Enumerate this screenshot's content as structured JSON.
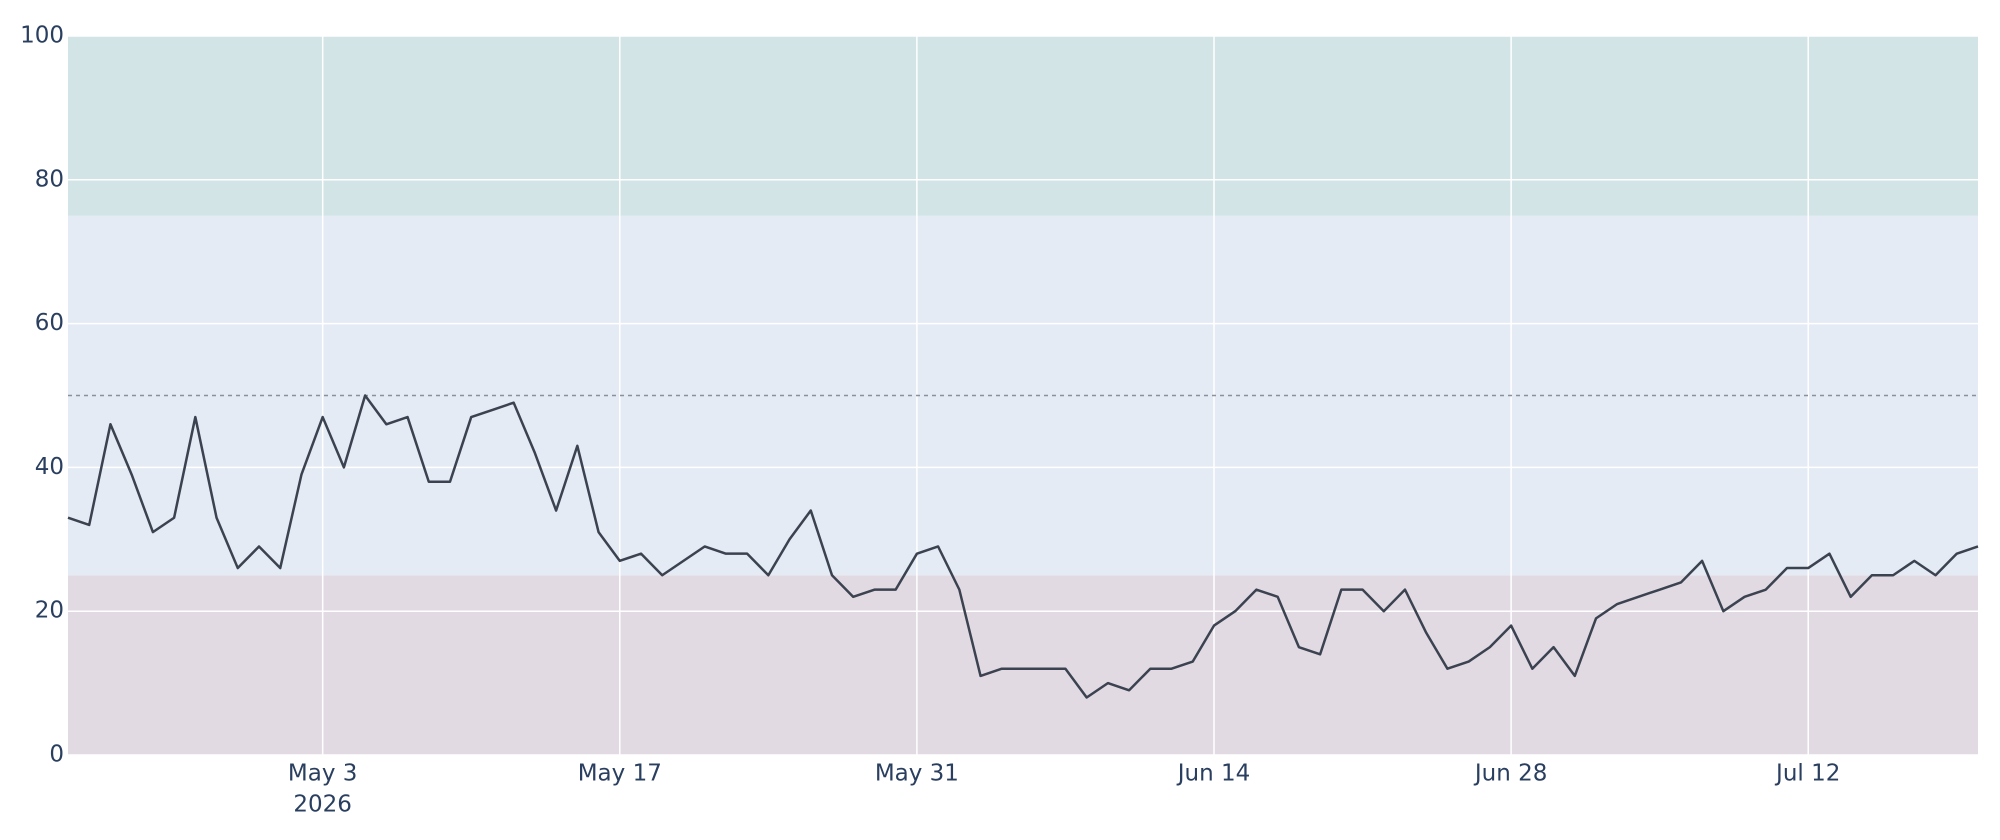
{
  "chart_data": {
    "type": "line",
    "x": [
      "2026-04-21",
      "2026-04-22",
      "2026-04-23",
      "2026-04-24",
      "2026-04-25",
      "2026-04-26",
      "2026-04-27",
      "2026-04-28",
      "2026-04-29",
      "2026-04-30",
      "2026-05-01",
      "2026-05-02",
      "2026-05-03",
      "2026-05-04",
      "2026-05-05",
      "2026-05-06",
      "2026-05-07",
      "2026-05-08",
      "2026-05-09",
      "2026-05-10",
      "2026-05-11",
      "2026-05-12",
      "2026-05-13",
      "2026-05-14",
      "2026-05-15",
      "2026-05-16",
      "2026-05-17",
      "2026-05-18",
      "2026-05-19",
      "2026-05-20",
      "2026-05-21",
      "2026-05-22",
      "2026-05-23",
      "2026-05-24",
      "2026-05-25",
      "2026-05-26",
      "2026-05-27",
      "2026-05-28",
      "2026-05-29",
      "2026-05-30",
      "2026-05-31",
      "2026-06-01",
      "2026-06-02",
      "2026-06-03",
      "2026-06-04",
      "2026-06-05",
      "2026-06-06",
      "2026-06-07",
      "2026-06-08",
      "2026-06-09",
      "2026-06-10",
      "2026-06-11",
      "2026-06-12",
      "2026-06-13",
      "2026-06-14",
      "2026-06-15",
      "2026-06-16",
      "2026-06-17",
      "2026-06-18",
      "2026-06-19",
      "2026-06-20",
      "2026-06-21",
      "2026-06-22",
      "2026-06-23",
      "2026-06-24",
      "2026-06-25",
      "2026-06-26",
      "2026-06-27",
      "2026-06-28",
      "2026-06-29",
      "2026-06-30",
      "2026-07-01",
      "2026-07-02",
      "2026-07-03",
      "2026-07-04",
      "2026-07-05",
      "2026-07-06",
      "2026-07-07",
      "2026-07-08",
      "2026-07-09",
      "2026-07-10",
      "2026-07-11",
      "2026-07-12",
      "2026-07-13",
      "2026-07-14",
      "2026-07-15",
      "2026-07-16",
      "2026-07-17",
      "2026-07-18",
      "2026-07-19",
      "2026-07-20"
    ],
    "series": [
      {
        "color": "#3b4250",
        "values": [
          33,
          32,
          46,
          39,
          31,
          33,
          47,
          33,
          26,
          29,
          26,
          39,
          47,
          40,
          50,
          46,
          47,
          38,
          38,
          47,
          48,
          49,
          42,
          34,
          43,
          31,
          27,
          28,
          25,
          27,
          29,
          28,
          28,
          25,
          30,
          34,
          25,
          22,
          23,
          23,
          28,
          29,
          23,
          11,
          12,
          12,
          12,
          12,
          8,
          10,
          9,
          12,
          12,
          13,
          18,
          20,
          23,
          22,
          15,
          14,
          23,
          23,
          20,
          23,
          17,
          12,
          13,
          15,
          18,
          12,
          15,
          11,
          19,
          21,
          22,
          23,
          24,
          27,
          20,
          22,
          23,
          26,
          26,
          28,
          22,
          25,
          25,
          27,
          25,
          28,
          29
        ]
      }
    ],
    "xlim": [
      "2026-04-21",
      "2026-07-20"
    ],
    "xticks": [
      {
        "value": "2026-05-03",
        "label": "May 3"
      },
      {
        "value": "2026-05-17",
        "label": "May 17"
      },
      {
        "value": "2026-05-31",
        "label": "May 31"
      },
      {
        "value": "2026-06-14",
        "label": "Jun 14"
      },
      {
        "value": "2026-06-28",
        "label": "Jun 28"
      },
      {
        "value": "2026-07-12",
        "label": "Jul 12"
      }
    ],
    "x_year_label": "2026",
    "ylim": [
      0,
      100
    ],
    "yticks": [
      0,
      20,
      40,
      60,
      80,
      100
    ],
    "grid": true,
    "bands": [
      {
        "from": 0,
        "to": 25,
        "color": "#e2dae3"
      },
      {
        "from": 25,
        "to": 75,
        "color": "#e5ebf5"
      },
      {
        "from": 75,
        "to": 100,
        "color": "#d2e4e6"
      }
    ],
    "reference_line": {
      "value": 50,
      "color": "#8a909c"
    }
  }
}
